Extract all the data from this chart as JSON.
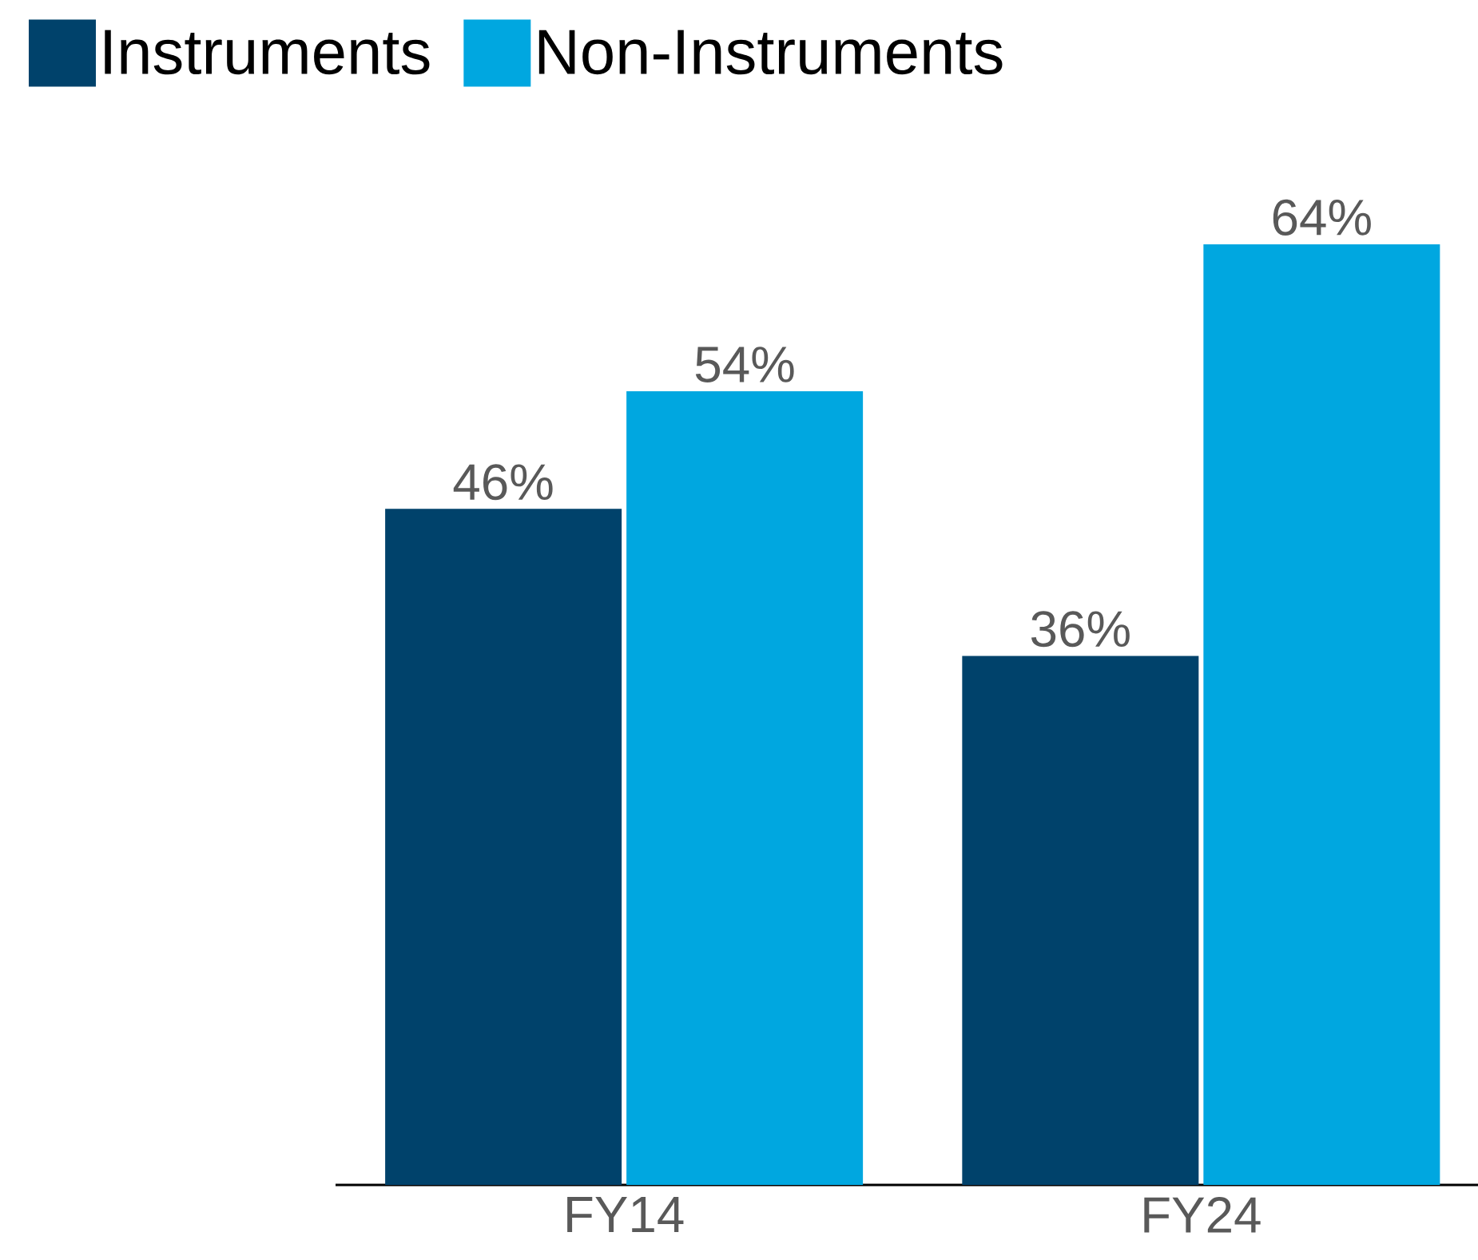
{
  "chart_data": {
    "type": "bar",
    "categories": [
      "FY14",
      "FY24"
    ],
    "series": [
      {
        "name": "Instruments",
        "color": "#00426b",
        "values": [
          46,
          36
        ],
        "value_labels": [
          "46%",
          "36%"
        ]
      },
      {
        "name": "Non-Instruments",
        "color": "#00a7e0",
        "values": [
          54,
          64
        ],
        "value_labels": [
          "54%",
          "64%"
        ]
      }
    ],
    "legend": "top left",
    "tick_labels": "x"
  }
}
